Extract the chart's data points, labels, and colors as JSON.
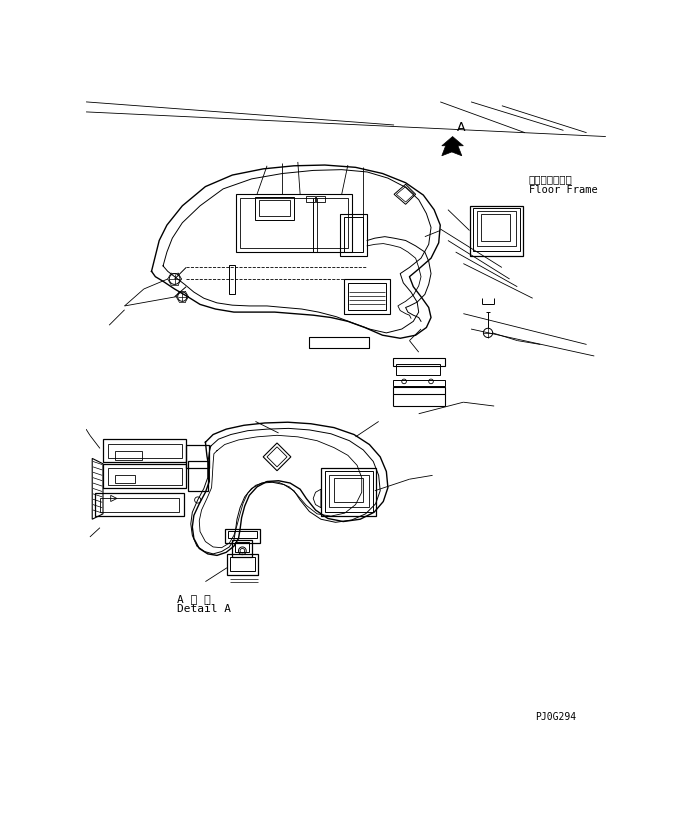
{
  "background_color": "#ffffff",
  "line_color": "#000000",
  "label_A": "A",
  "label_floor_frame_jp": "フロアフレーム",
  "label_floor_frame_en": "Floor Frame",
  "label_detail_jp": "A 詳 細",
  "label_detail_en": "Detail A",
  "label_part_code": "PJ0G294",
  "fig_width": 6.75,
  "fig_height": 8.17,
  "dpi": 100
}
